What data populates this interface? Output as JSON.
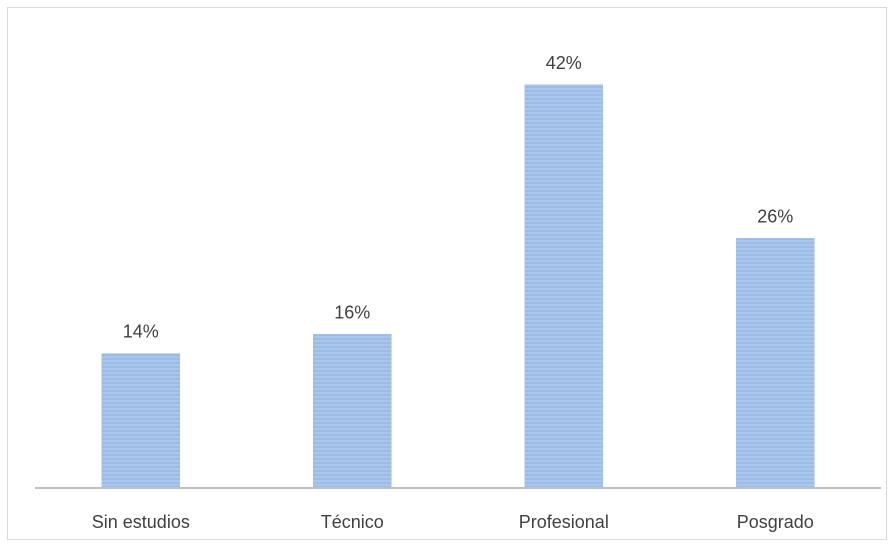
{
  "chart_data": {
    "type": "bar",
    "title": "",
    "xlabel": "",
    "ylabel": "",
    "categories": [
      "Sin estudios",
      "Técnico",
      "Profesional",
      "Posgrado"
    ],
    "values": [
      14,
      16,
      42,
      26
    ],
    "data_labels": [
      "14%",
      "16%",
      "42%",
      "26%"
    ],
    "unit": "%",
    "ylim": [
      0,
      45
    ],
    "grid": false,
    "legend": "none",
    "bar_color": "#a9c6ec",
    "bar_stripe_color": "#8fb2e0",
    "axis_color": "#bfbfbf",
    "label_color": "#404040"
  }
}
